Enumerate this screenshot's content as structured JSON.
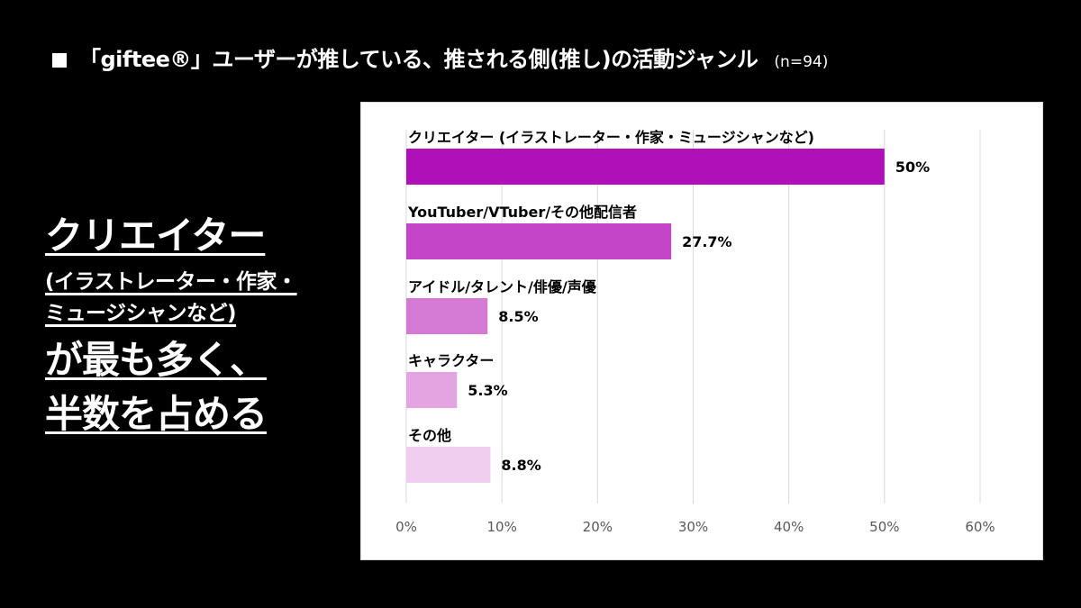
{
  "header": {
    "title": "「giftee®」ユーザーが推している、推される側(推し)の活動ジャンル",
    "note": "(n=94)"
  },
  "summary": {
    "line1": "クリエイター",
    "line2": "(イラストレーター・作家・",
    "line3": "ミュージシャンなど)",
    "line4": "が最も多く、",
    "line5": "半数を占める"
  },
  "chart_data": {
    "type": "bar",
    "orientation": "horizontal",
    "title": "",
    "xlabel": "",
    "ylabel": "",
    "xlim": [
      0,
      60
    ],
    "ticks": [
      0,
      10,
      20,
      30,
      40,
      50,
      60
    ],
    "tick_labels": [
      "0%",
      "10%",
      "20%",
      "30%",
      "40%",
      "50%",
      "60%"
    ],
    "grid": true,
    "categories": [
      "クリエイター (イラストレーター・作家・ミュージシャンなど)",
      "YouTuber/VTuber/その他配信者",
      "アイドル/タレント/俳優/声優",
      "キャラクター",
      "その他"
    ],
    "values": [
      50,
      27.7,
      8.5,
      5.3,
      8.8
    ],
    "value_labels": [
      "50%",
      "27.7%",
      "8.5%",
      "5.3%",
      "8.8%"
    ],
    "colors": [
      "#b010b8",
      "#c445c8",
      "#d47ad4",
      "#e3a4e1",
      "#f0cef0"
    ]
  }
}
